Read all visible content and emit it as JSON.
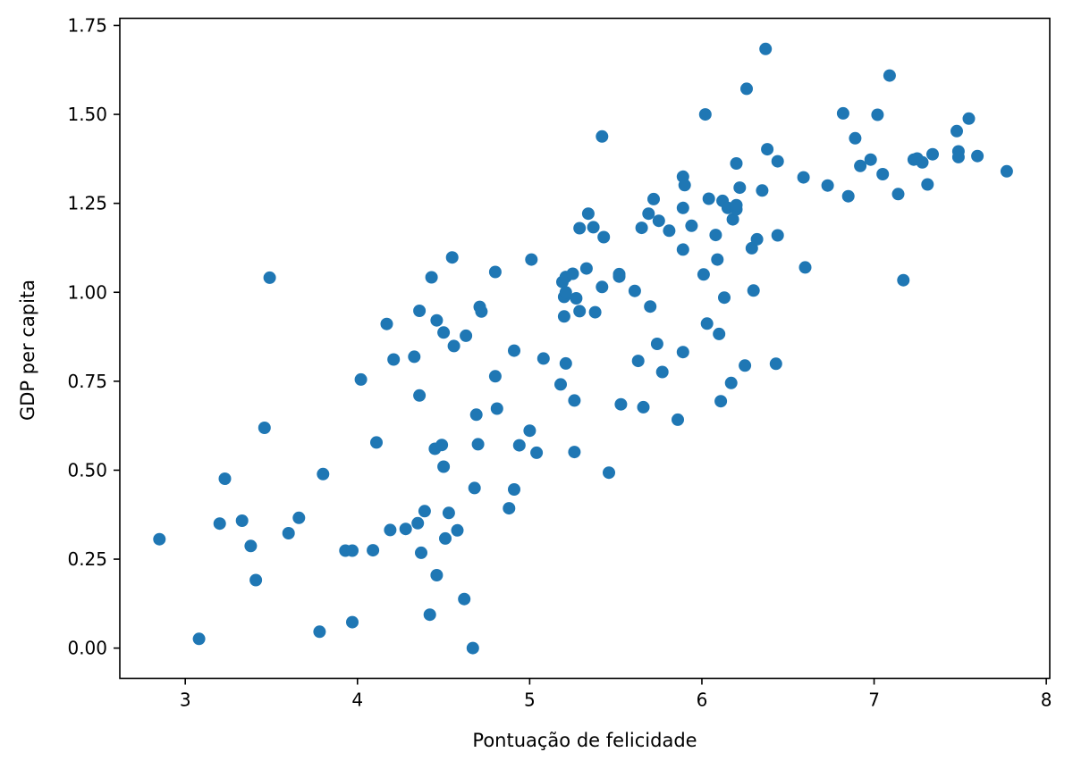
{
  "chart_data": {
    "type": "scatter",
    "title": "",
    "xlabel": "Pontuação de felicidade",
    "ylabel": "GDP per capita",
    "xlim": [
      2.62,
      8.02
    ],
    "ylim": [
      -0.085,
      1.77
    ],
    "xticks": [
      3,
      4,
      5,
      6,
      7,
      8
    ],
    "xtick_labels": [
      "3",
      "4",
      "5",
      "6",
      "7",
      "8"
    ],
    "yticks": [
      0.0,
      0.25,
      0.5,
      0.75,
      1.0,
      1.25,
      1.5,
      1.75
    ],
    "ytick_labels": [
      "0.00",
      "0.25",
      "0.50",
      "0.75",
      "1.00",
      "1.25",
      "1.50",
      "1.75"
    ],
    "grid": false,
    "legend": "none",
    "marker_color": "#1f77b4",
    "points": [
      [
        2.85,
        0.306
      ],
      [
        3.08,
        0.026
      ],
      [
        3.2,
        0.35
      ],
      [
        3.23,
        0.476
      ],
      [
        3.33,
        0.358
      ],
      [
        3.38,
        0.287
      ],
      [
        3.41,
        0.191
      ],
      [
        3.46,
        0.619
      ],
      [
        3.49,
        1.041
      ],
      [
        3.6,
        0.323
      ],
      [
        3.66,
        0.366
      ],
      [
        3.78,
        0.046
      ],
      [
        3.8,
        0.489
      ],
      [
        3.93,
        0.274
      ],
      [
        3.97,
        0.274
      ],
      [
        3.97,
        0.073
      ],
      [
        4.02,
        0.755
      ],
      [
        4.09,
        0.275
      ],
      [
        4.11,
        0.578
      ],
      [
        4.17,
        0.911
      ],
      [
        4.19,
        0.332
      ],
      [
        4.21,
        0.811
      ],
      [
        4.28,
        0.335
      ],
      [
        4.33,
        0.819
      ],
      [
        4.35,
        0.351
      ],
      [
        4.36,
        0.71
      ],
      [
        4.37,
        0.268
      ],
      [
        4.36,
        0.948
      ],
      [
        4.39,
        0.385
      ],
      [
        4.42,
        0.094
      ],
      [
        4.43,
        1.042
      ],
      [
        4.45,
        0.56
      ],
      [
        4.46,
        0.921
      ],
      [
        4.46,
        0.205
      ],
      [
        4.49,
        0.571
      ],
      [
        4.5,
        0.887
      ],
      [
        4.5,
        0.51
      ],
      [
        4.51,
        0.308
      ],
      [
        4.53,
        0.38
      ],
      [
        4.55,
        1.098
      ],
      [
        4.56,
        0.849
      ],
      [
        4.58,
        0.331
      ],
      [
        4.62,
        0.138
      ],
      [
        4.63,
        0.878
      ],
      [
        4.67,
        0.0
      ],
      [
        4.68,
        0.45
      ],
      [
        4.69,
        0.656
      ],
      [
        4.7,
        0.573
      ],
      [
        4.71,
        0.959
      ],
      [
        4.72,
        0.946
      ],
      [
        4.8,
        1.057
      ],
      [
        4.8,
        0.764
      ],
      [
        4.81,
        0.673
      ],
      [
        4.88,
        0.393
      ],
      [
        4.91,
        0.836
      ],
      [
        4.91,
        0.446
      ],
      [
        4.94,
        0.57
      ],
      [
        5.0,
        0.611
      ],
      [
        5.01,
        1.092
      ],
      [
        5.04,
        0.549
      ],
      [
        5.08,
        0.814
      ],
      [
        5.18,
        0.741
      ],
      [
        5.19,
        1.029
      ],
      [
        5.2,
        0.932
      ],
      [
        5.21,
        1.043
      ],
      [
        5.2,
        0.987
      ],
      [
        5.21,
        1.0
      ],
      [
        5.21,
        0.8
      ],
      [
        5.25,
        1.052
      ],
      [
        5.26,
        0.551
      ],
      [
        5.26,
        0.696
      ],
      [
        5.27,
        0.983
      ],
      [
        5.29,
        1.18
      ],
      [
        5.29,
        0.947
      ],
      [
        5.33,
        1.067
      ],
      [
        5.34,
        1.221
      ],
      [
        5.37,
        1.183
      ],
      [
        5.38,
        0.944
      ],
      [
        5.42,
        1.438
      ],
      [
        5.42,
        1.015
      ],
      [
        5.43,
        1.155
      ],
      [
        5.46,
        0.493
      ],
      [
        5.52,
        1.044
      ],
      [
        5.52,
        1.051
      ],
      [
        5.53,
        0.685
      ],
      [
        5.61,
        1.004
      ],
      [
        5.63,
        0.807
      ],
      [
        5.65,
        1.181
      ],
      [
        5.66,
        0.677
      ],
      [
        5.69,
        1.221
      ],
      [
        5.7,
        0.96
      ],
      [
        5.72,
        1.262
      ],
      [
        5.74,
        0.855
      ],
      [
        5.75,
        1.201
      ],
      [
        5.77,
        0.776
      ],
      [
        5.81,
        1.173
      ],
      [
        5.86,
        0.642
      ],
      [
        5.89,
        1.325
      ],
      [
        5.89,
        1.12
      ],
      [
        5.89,
        0.832
      ],
      [
        5.9,
        1.301
      ],
      [
        5.89,
        1.237
      ],
      [
        5.94,
        1.187
      ],
      [
        6.01,
        1.05
      ],
      [
        6.02,
        1.5
      ],
      [
        6.03,
        0.912
      ],
      [
        6.04,
        1.263
      ],
      [
        6.08,
        1.161
      ],
      [
        6.09,
        1.092
      ],
      [
        6.1,
        0.883
      ],
      [
        6.11,
        0.694
      ],
      [
        6.12,
        1.257
      ],
      [
        6.13,
        0.985
      ],
      [
        6.15,
        1.237
      ],
      [
        6.17,
        0.745
      ],
      [
        6.18,
        1.205
      ],
      [
        6.2,
        1.233
      ],
      [
        6.2,
        1.245
      ],
      [
        6.2,
        1.362
      ],
      [
        6.22,
        1.294
      ],
      [
        6.25,
        0.794
      ],
      [
        6.26,
        1.572
      ],
      [
        6.29,
        1.124
      ],
      [
        6.3,
        1.005
      ],
      [
        6.32,
        1.149
      ],
      [
        6.35,
        1.286
      ],
      [
        6.37,
        1.684
      ],
      [
        6.38,
        1.402
      ],
      [
        6.43,
        0.799
      ],
      [
        6.44,
        1.368
      ],
      [
        6.44,
        1.16
      ],
      [
        6.59,
        1.323
      ],
      [
        6.6,
        1.07
      ],
      [
        6.73,
        1.3
      ],
      [
        6.82,
        1.503
      ],
      [
        6.85,
        1.27
      ],
      [
        6.89,
        1.433
      ],
      [
        6.92,
        1.355
      ],
      [
        6.98,
        1.373
      ],
      [
        7.02,
        1.499
      ],
      [
        7.05,
        1.332
      ],
      [
        7.09,
        1.609
      ],
      [
        7.14,
        1.276
      ],
      [
        7.17,
        1.034
      ],
      [
        7.23,
        1.373
      ],
      [
        7.25,
        1.376
      ],
      [
        7.28,
        1.365
      ],
      [
        7.31,
        1.303
      ],
      [
        7.34,
        1.388
      ],
      [
        7.48,
        1.453
      ],
      [
        7.49,
        1.396
      ],
      [
        7.49,
        1.38
      ],
      [
        7.55,
        1.488
      ],
      [
        7.6,
        1.383
      ],
      [
        7.77,
        1.34
      ]
    ]
  }
}
